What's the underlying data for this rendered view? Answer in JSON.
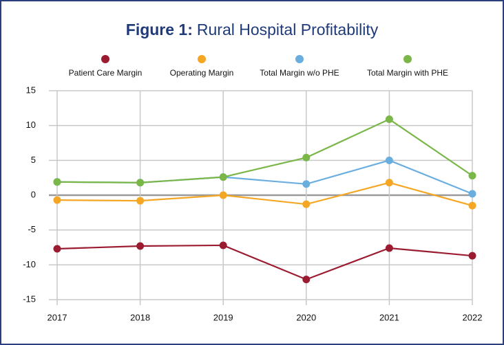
{
  "chart_data": {
    "type": "line",
    "title_label": "Figure 1:",
    "title": "Rural Hospital Profitability",
    "categories": [
      "2017",
      "2018",
      "2019",
      "2020",
      "2021",
      "2022"
    ],
    "series": [
      {
        "name": "Patient Care Margin",
        "color": "#9b1b30",
        "values": [
          -7.7,
          -7.3,
          -7.2,
          -12.1,
          -7.6,
          -8.7
        ]
      },
      {
        "name": "Operating Margin",
        "color": "#f5a623",
        "values": [
          -0.7,
          -0.8,
          0.0,
          -1.3,
          1.8,
          -1.5
        ]
      },
      {
        "name": "Total Margin w/o PHE",
        "color": "#6aaee0",
        "values": [
          1.9,
          1.8,
          2.6,
          1.6,
          5.0,
          0.2
        ]
      },
      {
        "name": "Total Margin with PHE",
        "color": "#7ab648",
        "values": [
          1.9,
          1.8,
          2.6,
          5.4,
          10.9,
          2.8
        ]
      }
    ],
    "ylim": [
      -15,
      15
    ],
    "yticks": [
      -15,
      -10,
      -5,
      0,
      5,
      10,
      15
    ],
    "grid": true
  }
}
